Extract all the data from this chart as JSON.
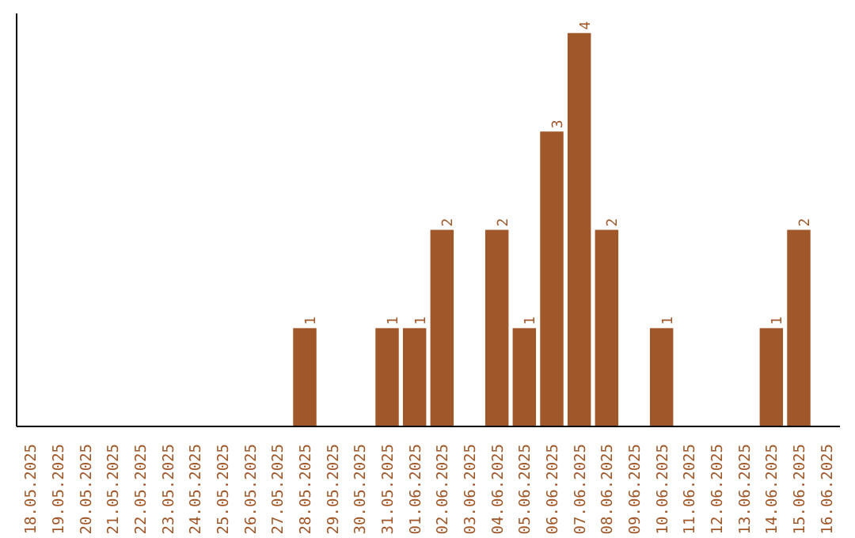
{
  "chart_data": {
    "type": "bar",
    "categories": [
      "18.05.2025",
      "19.05.2025",
      "20.05.2025",
      "21.05.2025",
      "22.05.2025",
      "23.05.2025",
      "24.05.2025",
      "25.05.2025",
      "26.05.2025",
      "27.05.2025",
      "28.05.2025",
      "29.05.2025",
      "30.05.2025",
      "31.05.2025",
      "01.06.2025",
      "02.06.2025",
      "03.06.2025",
      "04.06.2025",
      "05.06.2025",
      "06.06.2025",
      "07.06.2025",
      "08.06.2025",
      "09.06.2025",
      "10.06.2025",
      "11.06.2025",
      "12.06.2025",
      "13.06.2025",
      "14.06.2025",
      "15.06.2025",
      "16.06.2025"
    ],
    "values": [
      0,
      0,
      0,
      0,
      0,
      0,
      0,
      0,
      0,
      0,
      1,
      0,
      0,
      1,
      1,
      2,
      0,
      2,
      1,
      3,
      4,
      2,
      0,
      1,
      0,
      0,
      0,
      1,
      2,
      0
    ],
    "value_labels": [
      null,
      null,
      null,
      null,
      null,
      null,
      null,
      null,
      null,
      null,
      "1",
      null,
      null,
      "1",
      "1",
      "2",
      null,
      "2",
      "1",
      "3",
      "4",
      "2",
      null,
      "1",
      null,
      null,
      null,
      "1",
      "2",
      null
    ],
    "color": "#a0582a",
    "ylim": [
      0,
      4.2
    ],
    "grid": false,
    "tick_labels": "x"
  }
}
